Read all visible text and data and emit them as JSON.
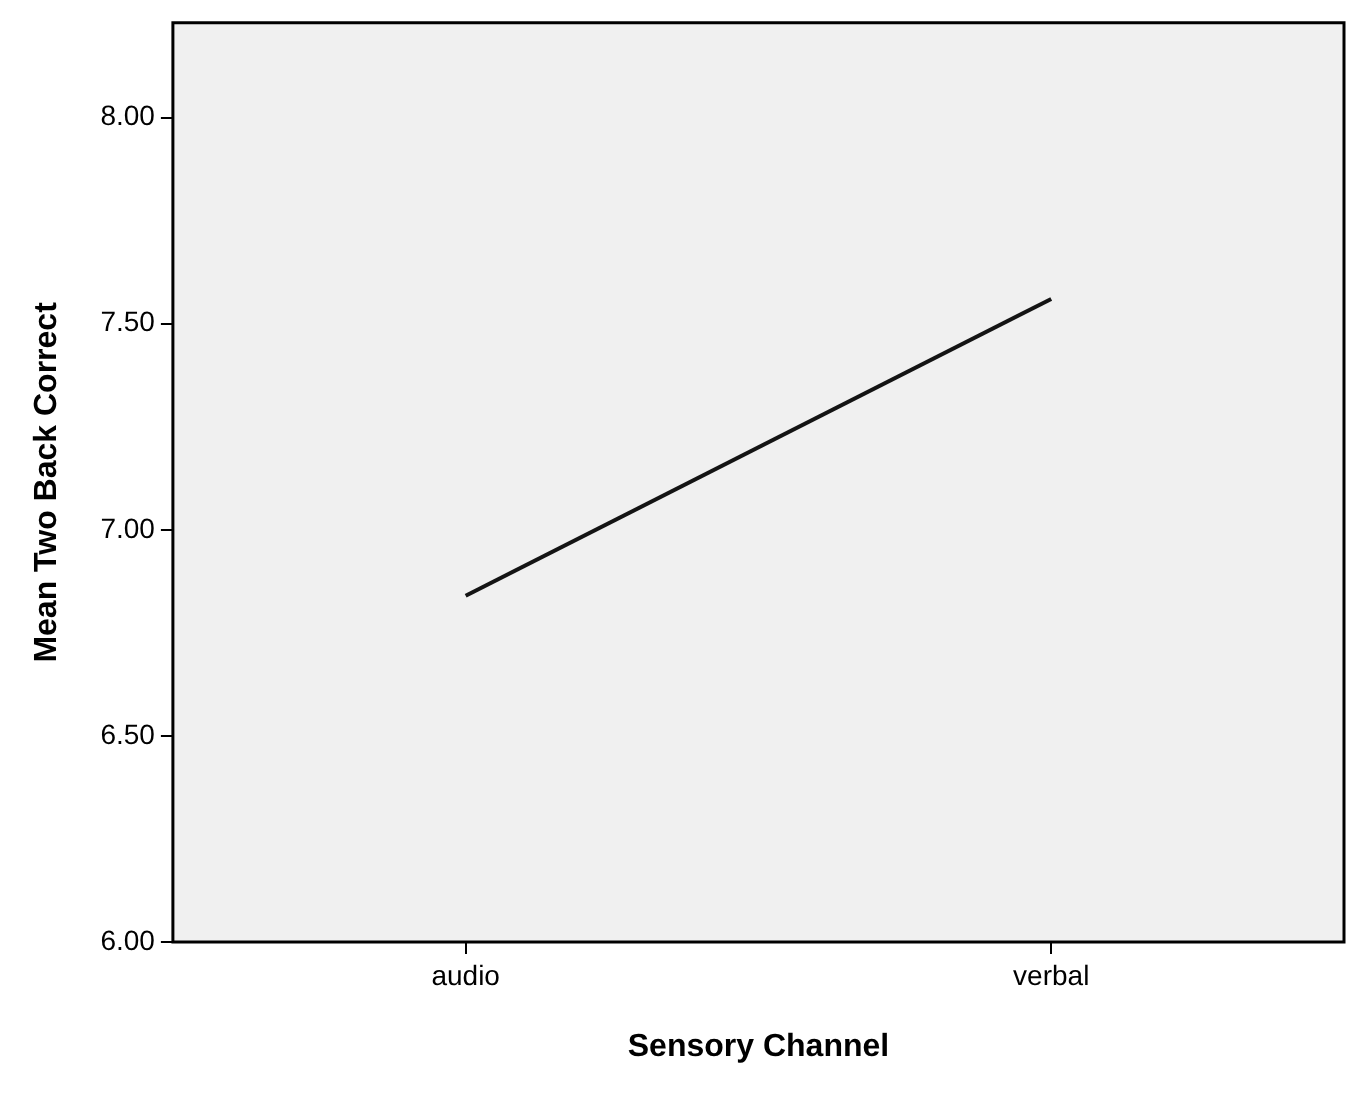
{
  "chart_data": {
    "type": "line",
    "xlabel": "Sensory Channel",
    "ylabel": "Mean Two Back Correct",
    "categories": [
      "audio",
      "verbal"
    ],
    "series": [
      {
        "color": "#141414",
        "values": [
          6.84,
          7.56
        ]
      }
    ],
    "ylim": [
      6,
      8.23
    ],
    "yticks": [
      {
        "value": 6,
        "label": "6.00"
      },
      {
        "value": 6.5,
        "label": "6.50"
      },
      {
        "value": 7,
        "label": "7.00"
      },
      {
        "value": 7.5,
        "label": "7.50"
      },
      {
        "value": 8,
        "label": "8.00"
      }
    ],
    "grid": false,
    "legend": false,
    "marker": "none",
    "line_style": "solid"
  }
}
